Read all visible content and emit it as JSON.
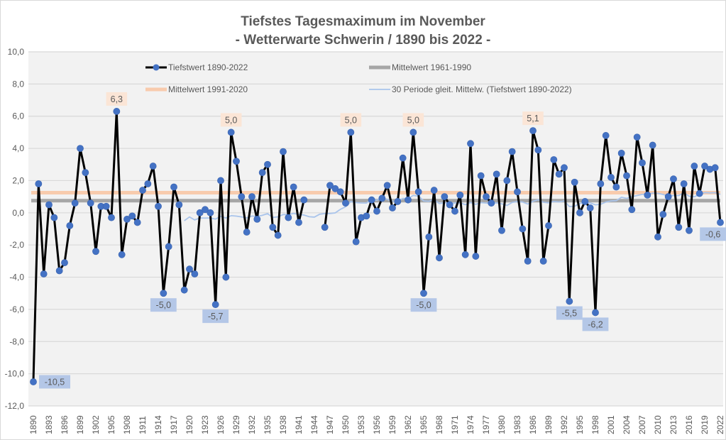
{
  "chart_data": {
    "type": "line",
    "title": "Tiefstes Tagesmaximum im November",
    "subtitle": "- Wetterwarte Schwerin / 1890 bis 2022 -",
    "xlabel": "",
    "ylabel": "",
    "ylim": [
      -12,
      10
    ],
    "y_ticks": [
      "10,0",
      "8,0",
      "6,0",
      "4,0",
      "2,0",
      "0,0",
      "-2,0",
      "-4,0",
      "-6,0",
      "-8,0",
      "-10,0",
      "-12,0"
    ],
    "y_tick_values": [
      10,
      8,
      6,
      4,
      2,
      0,
      -2,
      -4,
      -6,
      -8,
      -10,
      -12
    ],
    "x_range": [
      1890,
      2022
    ],
    "x_tick_step": 3,
    "grid": true,
    "legend_position": "top",
    "colors": {
      "plot_bg": "#f2f2f2",
      "grid": "#d9d9d9",
      "line": "#000000",
      "marker": "#4472c4",
      "mean_1961_1990": "#a6a6a6",
      "mean_1991_2020": "#f8cbad",
      "moving_avg": "#a9c4eb",
      "label_high_bg": "#fbe5d6",
      "label_low_bg": "#b4c7e7"
    },
    "legend": [
      {
        "key": "series",
        "label": "Tiefstwert 1890-2022"
      },
      {
        "key": "mean6190",
        "label": "Mittelwert 1961-1990"
      },
      {
        "key": "mean9120",
        "label": "Mittelwert 1991-2020"
      },
      {
        "key": "movavg",
        "label": "30 Periode gleit. Mittelw. (Tiefstwert 1890-2022)"
      }
    ],
    "series": [
      {
        "name": "Tiefstwert 1890-2022",
        "start_year": 1890,
        "values": [
          -10.5,
          1.8,
          -3.8,
          0.5,
          -0.3,
          -3.6,
          -3.1,
          -0.8,
          0.6,
          4.0,
          2.5,
          0.6,
          -2.4,
          0.4,
          0.4,
          -0.3,
          6.3,
          -2.6,
          -0.4,
          -0.2,
          -0.6,
          1.4,
          1.8,
          2.9,
          0.4,
          -5.0,
          -2.1,
          1.6,
          0.5,
          -4.8,
          -3.5,
          -3.8,
          0.0,
          0.2,
          0.0,
          -5.7,
          2.0,
          -4.0,
          5.0,
          3.2,
          1.0,
          -1.2,
          1.0,
          -0.4,
          2.5,
          3.0,
          -0.9,
          -1.4,
          3.8,
          -0.3,
          1.6,
          -0.6,
          0.8,
          null,
          null,
          null,
          -0.9,
          1.7,
          1.5,
          1.3,
          0.6,
          5.0,
          -1.8,
          -0.3,
          -0.2,
          0.8,
          0.1,
          0.9,
          1.7,
          0.3,
          0.7,
          3.4,
          0.8,
          5.0,
          1.3,
          -5.0,
          -1.5,
          1.4,
          -2.8,
          1.0,
          0.5,
          0.1,
          1.1,
          -2.6,
          4.3,
          -2.7,
          2.3,
          1.0,
          0.6,
          2.4,
          -1.1,
          2.0,
          3.8,
          1.3,
          -1.0,
          -3.0,
          5.1,
          3.9,
          -3.0,
          -0.8,
          3.3,
          2.4,
          2.8,
          -5.5,
          1.9,
          0.0,
          0.7,
          0.3,
          -6.2,
          1.8,
          4.8,
          2.2,
          1.6,
          3.7,
          2.3,
          0.2,
          4.7,
          3.1,
          1.1,
          4.2,
          -1.5,
          -0.1,
          1.0,
          2.1,
          -0.9,
          1.8,
          -1.1,
          2.9,
          1.2,
          2.9,
          2.7,
          2.8,
          -0.6
        ]
      },
      {
        "name": "Mittelwert 1961-1990",
        "value": 0.75
      },
      {
        "name": "Mittelwert 1991-2020",
        "value": 1.25
      },
      {
        "name": "30 Periode gleit. Mittelw. (Tiefstwert 1890-2022)",
        "period": 30,
        "computed_from": "Tiefstwert 1890-2022"
      }
    ],
    "annotations": [
      {
        "year": 1890,
        "value": -10.5,
        "text": "-10,5",
        "kind": "low",
        "pos": "right"
      },
      {
        "year": 1906,
        "value": 6.3,
        "text": "6,3",
        "kind": "high",
        "pos": "above"
      },
      {
        "year": 1915,
        "value": -5.0,
        "text": "-5,0",
        "kind": "low",
        "pos": "below"
      },
      {
        "year": 1925,
        "value": -5.7,
        "text": "-5,7",
        "kind": "low",
        "pos": "below"
      },
      {
        "year": 1928,
        "value": 5.0,
        "text": "5,0",
        "kind": "high",
        "pos": "above"
      },
      {
        "year": 1951,
        "value": 5.0,
        "text": "5,0",
        "kind": "high",
        "pos": "above"
      },
      {
        "year": 1963,
        "value": 5.0,
        "text": "5,0",
        "kind": "high",
        "pos": "above"
      },
      {
        "year": 1965,
        "value": -5.0,
        "text": "-5,0",
        "kind": "low",
        "pos": "below"
      },
      {
        "year": 1986,
        "value": 5.1,
        "text": "5,1",
        "kind": "high",
        "pos": "above"
      },
      {
        "year": 1993,
        "value": -5.5,
        "text": "-5,5",
        "kind": "low",
        "pos": "below"
      },
      {
        "year": 1998,
        "value": -6.2,
        "text": "-6,2",
        "kind": "low",
        "pos": "below"
      },
      {
        "year": 2022,
        "value": -0.6,
        "text": "-0,6",
        "kind": "low",
        "pos": "below"
      }
    ]
  }
}
